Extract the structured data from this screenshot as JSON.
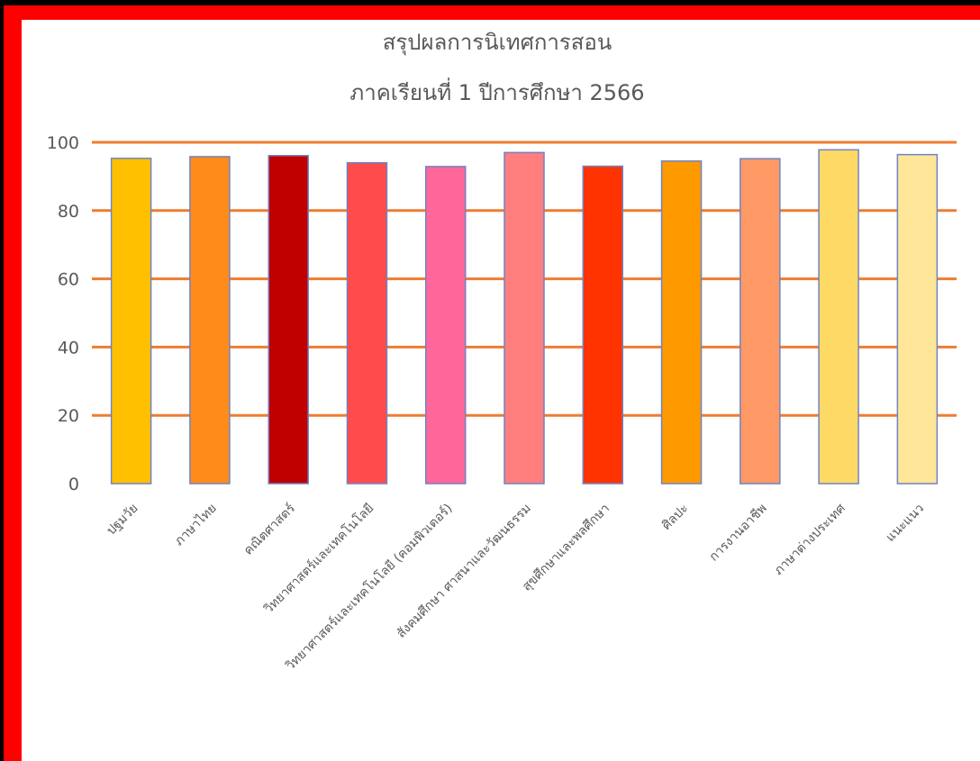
{
  "chart_data": {
    "type": "bar",
    "title": "สรุปผลการนิเทศการสอน",
    "subtitle": "ภาคเรียนที่ 1 ปีการศึกษา  2566",
    "xlabel": "",
    "ylabel": "",
    "ylim": [
      0,
      100
    ],
    "yticks": [
      0,
      20,
      40,
      60,
      80,
      100
    ],
    "grid": true,
    "grid_color": "#ed7d31",
    "bar_border_color": "#6e84c4",
    "categories": [
      "ปฐมวัย",
      "ภาษาไทย",
      "คณิตศาสตร์",
      "วิทยาศาสตร์และเทคโนโลยี",
      "วิทยาศาสตร์และเทคโนโลยี (คอมพิวเตอร์)",
      "สังคมศึกษา ศาสนาและวัฒนธรรม",
      "สุขศึกษาและพลศึกษา",
      "ศิลปะ",
      "การงานอาชีพ",
      "ภาษาต่างประเทศ",
      "แนะแนว"
    ],
    "values": [
      95.3,
      95.8,
      96.1,
      94.0,
      92.9,
      97.0,
      93.0,
      94.5,
      95.2,
      97.8,
      96.4
    ],
    "colors": [
      "#ffc000",
      "#ff8c1a",
      "#c00000",
      "#ff4b4b",
      "#ff6699",
      "#ff7f7f",
      "#ff3300",
      "#ff9900",
      "#ff9966",
      "#ffd966",
      "#ffe699"
    ]
  }
}
